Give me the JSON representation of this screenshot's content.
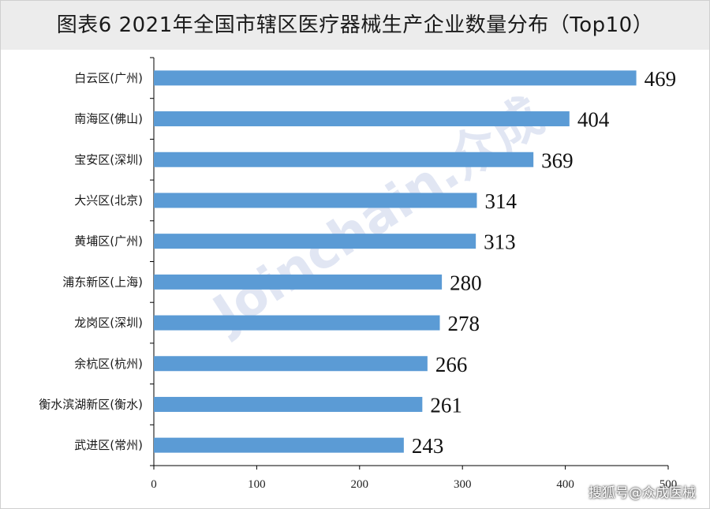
{
  "header": {
    "title": "图表6 2021年全国市辖区医疗器械生产企业数量分布（Top10）"
  },
  "watermark": {
    "text": "Joinchain.众成"
  },
  "footer": {
    "credit": "搜狐号@众成医械"
  },
  "colors": {
    "bar": "#5b9bd5",
    "axis": "#000000"
  },
  "chart_data": {
    "type": "bar",
    "orientation": "horizontal",
    "title": "图表6 2021年全国市辖区医疗器械生产企业数量分布（Top10）",
    "categories": [
      "白云区(广州)",
      "南海区(佛山)",
      "宝安区(深圳)",
      "大兴区(北京)",
      "黄埔区(广州)",
      "浦东新区(上海)",
      "龙岗区(深圳)",
      "余杭区(杭州)",
      "衡水滨湖新区(衡水)",
      "武进区(常州)"
    ],
    "values": [
      469,
      404,
      369,
      314,
      313,
      280,
      278,
      266,
      261,
      243
    ],
    "xlim": [
      0,
      500
    ],
    "xticks": [
      0,
      100,
      200,
      300,
      400,
      500
    ],
    "grid": false,
    "legend": "none"
  }
}
